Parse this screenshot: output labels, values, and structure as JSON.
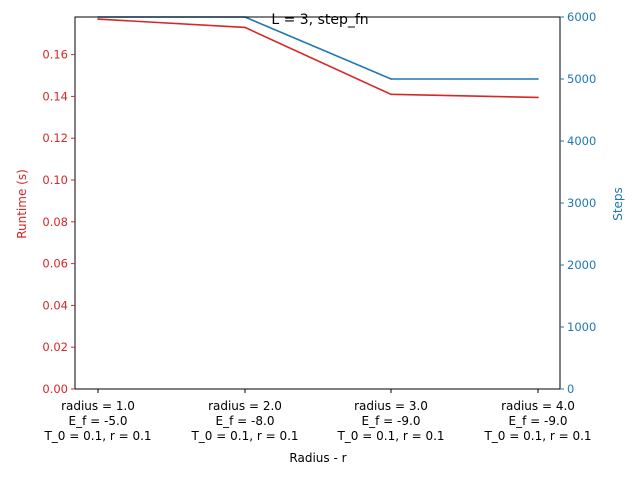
{
  "chart_data": {
    "type": "line",
    "title": "L = 3, step_fn",
    "xlabel": "Radius - r",
    "categories": [
      [
        "radius = 1.0",
        "E_f = -5.0",
        "T_0 = 0.1, r = 0.1"
      ],
      [
        "radius = 2.0",
        "E_f = -8.0",
        "T_0 = 0.1, r = 0.1"
      ],
      [
        "radius = 3.0",
        "E_f = -9.0",
        "T_0 = 0.1, r = 0.1"
      ],
      [
        "radius = 4.0",
        "E_f = -9.0",
        "T_0 = 0.1, r = 0.1"
      ]
    ],
    "y_left": {
      "label": "Runtime (s)",
      "color": "#d62728",
      "ylim": [
        0,
        0.178
      ],
      "ticks": [
        0.0,
        0.02,
        0.04,
        0.06,
        0.08,
        0.1,
        0.12,
        0.14,
        0.16
      ],
      "tick_labels": [
        "0.00",
        "0.02",
        "0.04",
        "0.06",
        "0.08",
        "0.10",
        "0.12",
        "0.14",
        "0.16"
      ]
    },
    "y_right": {
      "label": "Steps",
      "color": "#1f77b4",
      "ylim": [
        0,
        6000
      ],
      "ticks": [
        0,
        1000,
        2000,
        3000,
        4000,
        5000,
        6000
      ],
      "tick_labels": [
        "0",
        "1000",
        "2000",
        "3000",
        "4000",
        "5000",
        "6000"
      ]
    },
    "series": [
      {
        "axis": "left",
        "color": "#d62728",
        "values": [
          0.177,
          0.173,
          0.141,
          0.1395
        ]
      },
      {
        "axis": "right",
        "color": "#1f77b4",
        "values": [
          6000,
          6000,
          5000,
          5000
        ]
      }
    ],
    "grid": false,
    "legend": "none"
  }
}
